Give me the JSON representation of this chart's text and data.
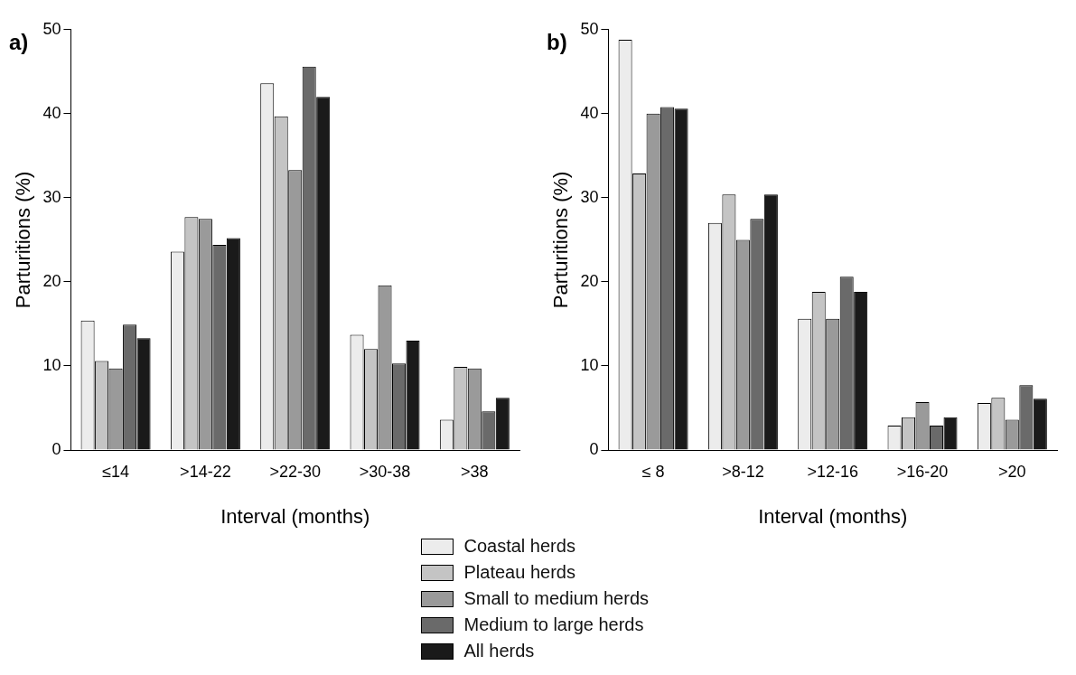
{
  "chart_data": [
    {
      "type": "bar",
      "title": "a)",
      "xlabel": "Interval (months)",
      "ylabel": "Parturitions (%)",
      "categories": [
        "≤14",
        ">14-22",
        ">22-30",
        ">30-38",
        ">38"
      ],
      "series": [
        {
          "name": "Coastal herds",
          "color": "#ececec",
          "values": [
            15.4,
            23.6,
            43.6,
            13.7,
            3.6
          ]
        },
        {
          "name": "Plateau herds",
          "color": "#c4c4c4",
          "values": [
            10.6,
            27.7,
            39.7,
            12.0,
            9.9
          ]
        },
        {
          "name": "Small to medium herds",
          "color": "#9a9a9a",
          "values": [
            9.7,
            27.5,
            33.3,
            19.6,
            9.7
          ]
        },
        {
          "name": "Medium to large herds",
          "color": "#6a6a6a",
          "values": [
            14.9,
            24.4,
            45.6,
            10.3,
            4.6
          ]
        },
        {
          "name": "All herds",
          "color": "#1a1a1a",
          "values": [
            13.3,
            25.2,
            42.0,
            13.0,
            6.2
          ]
        }
      ],
      "ylim": [
        0,
        50
      ],
      "yticks": [
        0,
        10,
        20,
        30,
        40,
        50
      ],
      "grid": false,
      "legend": "bottom"
    },
    {
      "type": "bar",
      "title": "b)",
      "xlabel": "Interval (months)",
      "ylabel": "Parturitions (%)",
      "categories": [
        "≤ 8",
        ">8-12",
        ">12-16",
        ">16-20",
        ">20"
      ],
      "series": [
        {
          "color": "#ececec",
          "values": [
            48.8,
            27.0,
            15.6,
            2.9,
            5.6
          ]
        },
        {
          "color": "#c4c4c4",
          "values": [
            32.9,
            30.4,
            18.8,
            3.9,
            6.2
          ]
        },
        {
          "color": "#9a9a9a",
          "values": [
            40.0,
            25.0,
            15.6,
            5.7,
            3.6
          ]
        },
        {
          "color": "#6a6a6a",
          "values": [
            40.8,
            27.5,
            20.6,
            2.9,
            7.7
          ]
        },
        {
          "color": "#1a1a1a",
          "values": [
            40.6,
            30.4,
            18.8,
            3.9,
            6.1
          ]
        }
      ],
      "ylim": [
        0,
        50
      ],
      "yticks": [
        0,
        10,
        20,
        30,
        40,
        50
      ],
      "grid": false,
      "legend": false
    }
  ]
}
